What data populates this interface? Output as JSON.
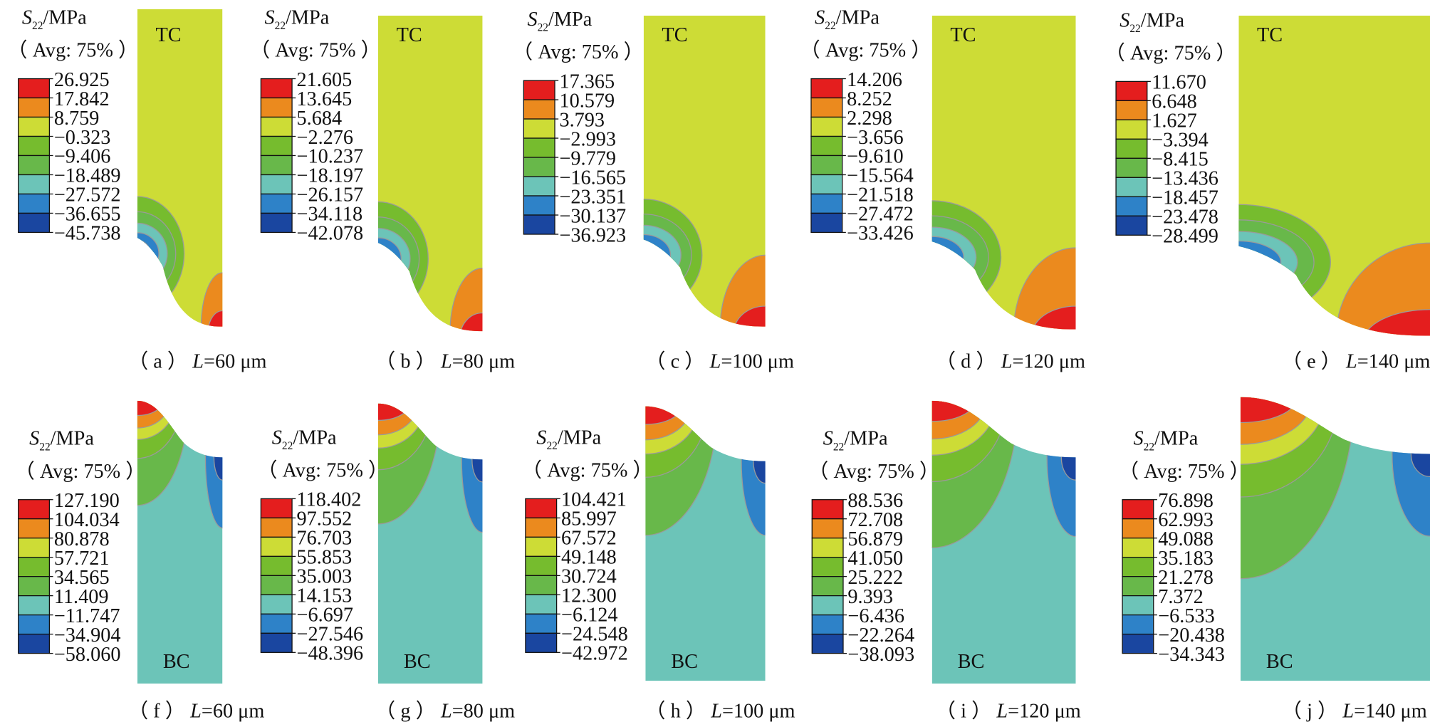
{
  "figure": {
    "colors": [
      "#E41E1E",
      "#EB8A1E",
      "#CDDC36",
      "#76BC2E",
      "#68B84A",
      "#6CC4B8",
      "#2E82C8",
      "#1A46A0"
    ],
    "legend_title_main": "S",
    "legend_title_sub": "22",
    "legend_title_unit": "/MPa",
    "legend_avg": "（ Avg: 75% ）",
    "panels": [
      {
        "id": "a",
        "region": "TC",
        "caption_letter": "a",
        "L": "60",
        "unit": "μm",
        "legend": [
          "26.925",
          "17.842",
          "8.759",
          "−0.323",
          "−9.406",
          "−18.489",
          "−27.572",
          "−36.655",
          "−45.738"
        ]
      },
      {
        "id": "b",
        "region": "TC",
        "caption_letter": "b",
        "L": "80",
        "unit": "μm",
        "legend": [
          "21.605",
          "13.645",
          "5.684",
          "−2.276",
          "−10.237",
          "−18.197",
          "−26.157",
          "−34.118",
          "−42.078"
        ]
      },
      {
        "id": "c",
        "region": "TC",
        "caption_letter": "c",
        "L": "100",
        "unit": "μm",
        "legend": [
          "17.365",
          "10.579",
          "3.793",
          "−2.993",
          "−9.779",
          "−16.565",
          "−23.351",
          "−30.137",
          "−36.923"
        ]
      },
      {
        "id": "d",
        "region": "TC",
        "caption_letter": "d",
        "L": "120",
        "unit": "μm",
        "legend": [
          "14.206",
          "8.252",
          "2.298",
          "−3.656",
          "−9.610",
          "−15.564",
          "−21.518",
          "−27.472",
          "−33.426"
        ]
      },
      {
        "id": "e",
        "region": "TC",
        "caption_letter": "e",
        "L": "140",
        "unit": "μm",
        "legend": [
          "11.670",
          "6.648",
          "1.627",
          "−3.394",
          "−8.415",
          "−13.436",
          "−18.457",
          "−23.478",
          "−28.499"
        ]
      },
      {
        "id": "f",
        "region": "BC",
        "caption_letter": "f",
        "L": "60",
        "unit": "μm",
        "legend": [
          "127.190",
          "104.034",
          "80.878",
          "57.721",
          "34.565",
          "11.409",
          "−11.747",
          "−34.904",
          "−58.060"
        ]
      },
      {
        "id": "g",
        "region": "BC",
        "caption_letter": "g",
        "L": "80",
        "unit": "μm",
        "legend": [
          "118.402",
          "97.552",
          "76.703",
          "55.853",
          "35.003",
          "14.153",
          "−6.697",
          "−27.546",
          "−48.396"
        ]
      },
      {
        "id": "h",
        "region": "BC",
        "caption_letter": "h",
        "L": "100",
        "unit": "μm",
        "legend": [
          "104.421",
          "85.997",
          "67.572",
          "49.148",
          "30.724",
          "12.300",
          "−6.124",
          "−24.548",
          "−42.972"
        ]
      },
      {
        "id": "i",
        "region": "BC",
        "caption_letter": "i",
        "L": "120",
        "unit": "μm",
        "legend": [
          "88.536",
          "72.708",
          "56.879",
          "41.050",
          "25.222",
          "9.393",
          "−6.436",
          "−22.264",
          "−38.093"
        ]
      },
      {
        "id": "j",
        "region": "BC",
        "caption_letter": "j",
        "L": "140",
        "unit": "μm",
        "legend": [
          "76.898",
          "62.993",
          "49.088",
          "35.183",
          "21.278",
          "7.372",
          "−6.533",
          "−20.438",
          "−34.343"
        ]
      }
    ]
  }
}
